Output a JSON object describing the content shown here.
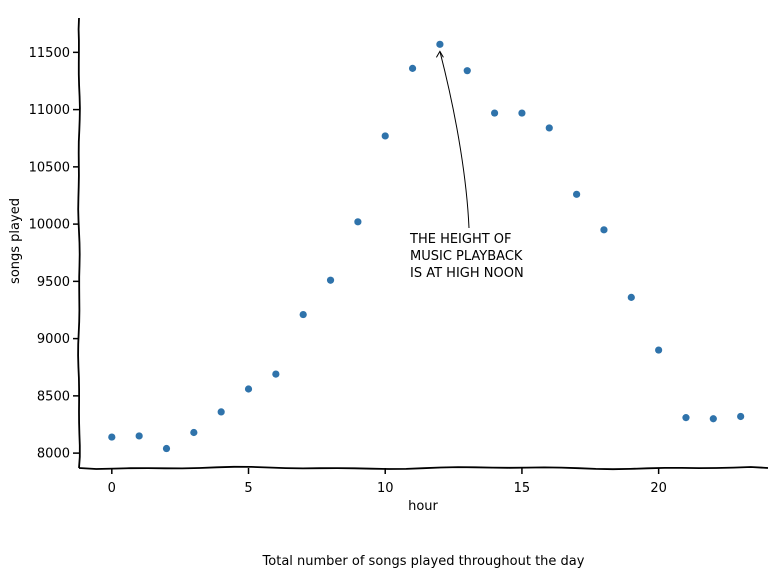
{
  "chart_data": {
    "type": "scatter",
    "xlabel": "hour",
    "ylabel": "songs played",
    "caption": "Total number of songs played throughout the day",
    "xlim": [
      -1.2,
      24
    ],
    "ylim": [
      7870,
      11800
    ],
    "xticks": [
      0,
      5,
      10,
      15,
      20
    ],
    "yticks": [
      8000,
      8500,
      9000,
      9500,
      10000,
      10500,
      11000,
      11500
    ],
    "grid": false,
    "marker_color": "#2f73ab",
    "x": [
      0,
      1,
      2,
      3,
      4,
      5,
      6,
      7,
      8,
      9,
      10,
      11,
      12,
      13,
      14,
      15,
      16,
      17,
      18,
      19,
      20,
      21,
      22,
      23
    ],
    "y": [
      8140,
      8150,
      8040,
      8180,
      8360,
      8560,
      8690,
      9210,
      9510,
      10020,
      10770,
      11360,
      11570,
      11340,
      10970,
      10970,
      10840,
      10260,
      9950,
      9360,
      8900,
      8310,
      8300,
      8320
    ],
    "annotation": {
      "lines": [
        "THE HEIGHT OF",
        "MUSIC PLAYBACK",
        "IS AT HIGH NOON"
      ],
      "points_to": {
        "x": 12,
        "y": 11570
      }
    }
  }
}
